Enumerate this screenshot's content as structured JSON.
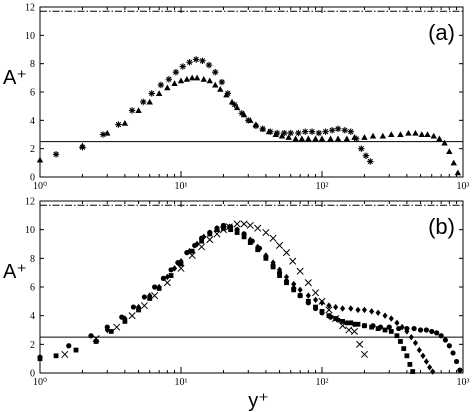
{
  "chart_data": [
    {
      "type": "scatter",
      "panel_label": "(a)",
      "ylabel": "A⁺",
      "xlabel": "",
      "x_scale": "log",
      "xlim": [
        1,
        1000
      ],
      "ylim": [
        0,
        12
      ],
      "yticks": [
        0,
        2,
        4,
        6,
        8,
        10,
        12
      ],
      "xtick_labels": [
        "10⁰",
        "10¹",
        "10²",
        "10³"
      ],
      "grid": false,
      "reference_lines": [
        {
          "y": 2.5,
          "style": "solid"
        },
        {
          "y": 11.7,
          "style": "dashdot"
        }
      ],
      "series": [
        {
          "marker": "asterisk",
          "x": [
            1.3,
            2.0,
            2.8,
            3.6,
            4.5,
            5.4,
            6.2,
            7.2,
            8.2,
            9.2,
            10.3,
            11.5,
            12.8,
            14.2,
            15.8,
            17.5,
            19.5,
            21.5,
            24,
            27,
            30,
            34,
            38,
            43,
            48,
            54,
            60,
            68,
            76,
            85,
            95,
            106,
            118,
            130,
            145,
            160,
            175,
            190,
            205,
            220
          ],
          "y": [
            1.6,
            2.1,
            3.0,
            3.7,
            4.7,
            5.3,
            5.9,
            6.5,
            6.9,
            7.4,
            7.8,
            8.1,
            8.3,
            8.2,
            7.9,
            7.4,
            6.7,
            5.9,
            5.1,
            4.5,
            4.0,
            3.6,
            3.4,
            3.2,
            3.1,
            3.1,
            3.1,
            3.1,
            3.2,
            3.2,
            3.1,
            3.2,
            3.3,
            3.4,
            3.3,
            3.2,
            2.7,
            2.0,
            1.5,
            1.1
          ]
        },
        {
          "marker": "triangle",
          "x": [
            1.0,
            2.0,
            3.0,
            4.0,
            5.0,
            6.0,
            7.0,
            8.0,
            9.0,
            10.0,
            11.0,
            12.0,
            13.0,
            14.5,
            16,
            17.5,
            19,
            21,
            23,
            25,
            28,
            31,
            34,
            38,
            42,
            47,
            52,
            58,
            65,
            72,
            80,
            90,
            100,
            115,
            130,
            150,
            170,
            200,
            230,
            270,
            310,
            360,
            410,
            460,
            510,
            560,
            620,
            680,
            740,
            800,
            860,
            920
          ],
          "y": [
            1.2,
            2.2,
            3.1,
            3.8,
            4.7,
            5.3,
            5.9,
            6.3,
            6.6,
            6.8,
            6.9,
            7.0,
            7.0,
            6.9,
            6.8,
            6.5,
            6.2,
            5.8,
            5.3,
            4.9,
            4.4,
            4.0,
            3.7,
            3.4,
            3.2,
            3.0,
            2.9,
            2.8,
            2.7,
            2.7,
            2.7,
            2.7,
            2.7,
            2.7,
            2.7,
            2.7,
            2.8,
            2.8,
            2.9,
            2.9,
            3.0,
            3.0,
            3.1,
            3.1,
            3.0,
            3.0,
            2.9,
            2.7,
            2.4,
            1.8,
            1.0,
            0.3
          ]
        }
      ]
    },
    {
      "type": "scatter",
      "panel_label": "(b)",
      "ylabel": "A⁺",
      "xlabel": "y⁺",
      "x_scale": "log",
      "xlim": [
        1,
        1000
      ],
      "ylim": [
        0,
        12
      ],
      "yticks": [
        0,
        2,
        4,
        6,
        8,
        10,
        12
      ],
      "xtick_labels": [
        "10⁰",
        "10¹",
        "10²",
        "10³"
      ],
      "grid": false,
      "reference_lines": [
        {
          "y": 2.5,
          "style": "solid"
        },
        {
          "y": 11.7,
          "style": "dashdot"
        }
      ],
      "series": [
        {
          "marker": "cross",
          "x": [
            1.5,
            2.5,
            3.5,
            4.5,
            5.5,
            6.5,
            8,
            10,
            12,
            14,
            16,
            18,
            20,
            22,
            25,
            28,
            31,
            35,
            40,
            45,
            50,
            56,
            62,
            70,
            80,
            90,
            100,
            112,
            125,
            140,
            155,
            170,
            185,
            200
          ],
          "y": [
            1.3,
            2.4,
            3.2,
            4.0,
            4.7,
            5.4,
            6.3,
            7.3,
            8.2,
            8.8,
            9.3,
            9.7,
            10.0,
            10.2,
            10.4,
            10.4,
            10.3,
            10.1,
            9.8,
            9.4,
            8.9,
            8.4,
            7.8,
            7.1,
            6.3,
            5.6,
            5.0,
            4.4,
            3.8,
            3.3,
            3.0,
            2.9,
            2.0,
            1.3
          ]
        },
        {
          "marker": "circle",
          "x": [
            1.0,
            1.6,
            2.3,
            3.0,
            3.8,
            4.6,
            5.5,
            6.5,
            7.5,
            8.5,
            9.5,
            11,
            12.5,
            14,
            16,
            18,
            20,
            22.5,
            25,
            28,
            32,
            36,
            40,
            45,
            50,
            56,
            63,
            70,
            80,
            90,
            100,
            115,
            130,
            150,
            170,
            200,
            230,
            260,
            300,
            350,
            400,
            450,
            500,
            550,
            600,
            650,
            700,
            750,
            800,
            850,
            900,
            950
          ],
          "y": [
            1.1,
            1.9,
            2.6,
            3.2,
            3.9,
            4.6,
            5.3,
            6.0,
            6.6,
            7.2,
            7.7,
            8.4,
            8.9,
            9.4,
            9.8,
            10.1,
            10.3,
            10.2,
            10.0,
            9.7,
            9.2,
            8.7,
            8.1,
            7.5,
            7.0,
            6.4,
            5.9,
            5.4,
            4.9,
            4.5,
            4.2,
            3.9,
            3.7,
            3.5,
            3.4,
            3.3,
            3.3,
            3.2,
            3.2,
            3.1,
            3.1,
            3.1,
            3.0,
            3.0,
            2.9,
            2.8,
            2.6,
            2.3,
            1.9,
            1.4,
            0.8,
            0.2
          ]
        },
        {
          "marker": "diamond",
          "x": [
            3.0,
            4.0,
            5.0,
            6.0,
            7.0,
            8.0,
            9.0,
            10,
            11.5,
            13,
            14.5,
            16,
            18,
            20,
            22,
            25,
            28,
            31,
            35,
            40,
            45,
            50,
            56,
            63,
            70,
            80,
            90,
            100,
            112,
            125,
            140,
            160,
            180,
            200,
            225,
            250,
            280,
            310,
            340,
            370,
            400,
            430,
            460,
            490,
            520,
            550,
            580,
            610
          ],
          "y": [
            3.0,
            3.8,
            4.6,
            5.4,
            6.0,
            6.7,
            7.3,
            7.8,
            8.5,
            9.0,
            9.5,
            9.8,
            10.1,
            10.2,
            10.2,
            10.0,
            9.7,
            9.3,
            8.8,
            8.2,
            7.7,
            7.2,
            6.7,
            6.2,
            5.8,
            5.4,
            5.1,
            4.9,
            4.7,
            4.6,
            4.5,
            4.5,
            4.4,
            4.4,
            4.3,
            4.2,
            4.0,
            3.8,
            3.5,
            3.2,
            2.9,
            2.5,
            2.1,
            1.6,
            1.2,
            0.8,
            0.4,
            0.1
          ]
        },
        {
          "marker": "square",
          "x": [
            1.0,
            1.3,
            1.8,
            2.5,
            3.2,
            4.0,
            5.0,
            6.0,
            7.0,
            8.5,
            10,
            12,
            14,
            16,
            18,
            20,
            22.5,
            25,
            28,
            31,
            35,
            40,
            45,
            50,
            56,
            63,
            70,
            80,
            90,
            100,
            112,
            125,
            140,
            160,
            180,
            200,
            225,
            250,
            280,
            310,
            340,
            360,
            380,
            400,
            420,
            440
          ],
          "y": [
            1.0,
            1.2,
            1.6,
            2.2,
            2.9,
            3.6,
            4.4,
            5.2,
            5.9,
            6.8,
            7.6,
            8.5,
            9.2,
            9.7,
            10.0,
            10.1,
            10.0,
            9.8,
            9.5,
            9.1,
            8.6,
            8.0,
            7.4,
            6.8,
            6.3,
            5.8,
            5.4,
            5.0,
            4.6,
            4.3,
            4.0,
            3.8,
            3.6,
            3.5,
            3.4,
            3.3,
            3.2,
            3.1,
            3.0,
            2.9,
            2.6,
            2.2,
            1.7,
            1.2,
            0.6,
            0.1
          ]
        }
      ]
    }
  ]
}
